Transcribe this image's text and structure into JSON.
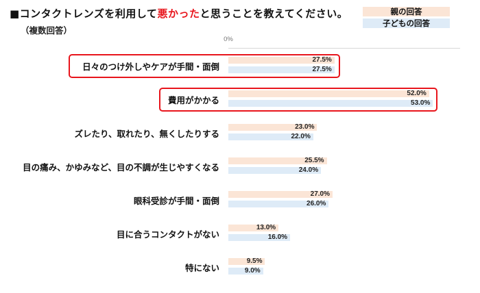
{
  "header": {
    "title_prefix": "■コンタクトレンズを利用して",
    "title_highlight": "悪かった",
    "title_suffix": "と思うことを教えてください。",
    "subtitle": "（複数回答）"
  },
  "colors": {
    "parent": "#fbe5d6",
    "child": "#deebf7",
    "highlight": "#e8141b"
  },
  "legend": [
    {
      "label": "親の回答",
      "color": "#fbe5d6"
    },
    {
      "label": "子どもの回答",
      "color": "#deebf7"
    }
  ],
  "chart_data": {
    "type": "bar",
    "orientation": "horizontal",
    "title": "コンタクトレンズを利用して悪かったと思うことを教えてください。",
    "subtitle": "（複数回答）",
    "xlabel": "",
    "ylabel": "",
    "xlim": [
      0,
      60
    ],
    "x_ticks": [
      "0%",
      "10%",
      "20%",
      "30%",
      "40%",
      "50%",
      "60%"
    ],
    "legend_position": "top-right",
    "categories": [
      "日々のつけ外しやケアが手間・面倒",
      "費用がかかる",
      "ズレたり、取れたり、無くしたりする",
      "目の痛み、かゆみなど、目の不調が生じやすくなる",
      "眼科受診が手間・面倒",
      "目に合うコンタクトがない",
      "特にない"
    ],
    "series": [
      {
        "name": "親の回答",
        "values": [
          27.5,
          52.0,
          23.0,
          25.5,
          27.0,
          13.0,
          9.5
        ]
      },
      {
        "name": "子どもの回答",
        "values": [
          27.5,
          53.0,
          22.0,
          24.0,
          26.0,
          16.0,
          9.0
        ]
      }
    ],
    "highlighted_categories": [
      "日々のつけ外しやケアが手間・面倒",
      "費用がかかる"
    ]
  },
  "rows": [
    {
      "label": "日々のつけ外しやケアが手間・面倒",
      "parent": 27.5,
      "child": 27.5,
      "parent_label": "27.5%",
      "child_label": "27.5%"
    },
    {
      "label": "費用がかかる",
      "parent": 52.0,
      "child": 53.0,
      "parent_label": "52.0%",
      "child_label": "53.0%"
    },
    {
      "label": "ズレたり、取れたり、無くしたりする",
      "parent": 23.0,
      "child": 22.0,
      "parent_label": "23.0%",
      "child_label": "22.0%"
    },
    {
      "label": "目の痛み、かゆみなど、目の不調が生じやすくなる",
      "parent": 25.5,
      "child": 24.0,
      "parent_label": "25.5%",
      "child_label": "24.0%"
    },
    {
      "label": "眼科受診が手間・面倒",
      "parent": 27.0,
      "child": 26.0,
      "parent_label": "27.0%",
      "child_label": "26.0%"
    },
    {
      "label": "目に合うコンタクトがない",
      "parent": 13.0,
      "child": 16.0,
      "parent_label": "13.0%",
      "child_label": "16.0%"
    },
    {
      "label": "特にない",
      "parent": 9.5,
      "child": 9.0,
      "parent_label": "9.5%",
      "child_label": "9.0%"
    }
  ]
}
